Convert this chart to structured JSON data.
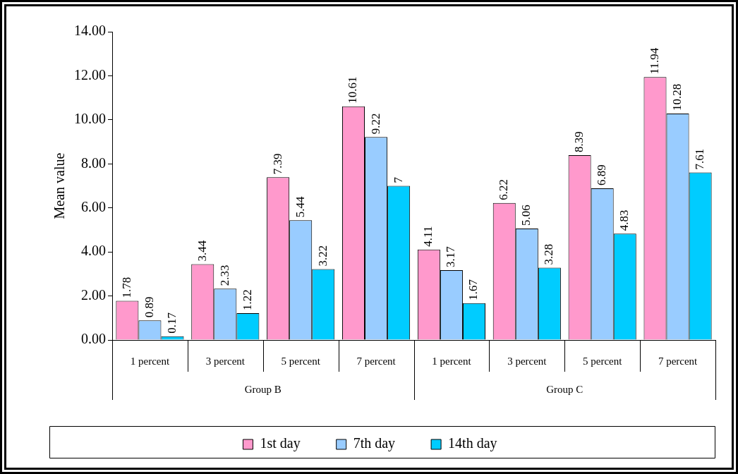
{
  "chart_data": {
    "type": "bar",
    "ylabel": "Mean value",
    "categories": [
      "1 percent",
      "3 percent",
      "5 percent",
      "7 percent",
      "1 percent",
      "3 percent",
      "5 percent",
      "7 percent"
    ],
    "annotations": [
      "Group B",
      "Group C"
    ],
    "series": [
      {
        "name": "1st day",
        "color": "#ff99cc",
        "values": [
          1.78,
          3.44,
          7.39,
          10.61,
          4.11,
          6.22,
          8.39,
          11.94
        ]
      },
      {
        "name": "7th day",
        "color": "#99ccff",
        "values": [
          0.89,
          2.33,
          5.44,
          9.22,
          3.17,
          5.06,
          6.89,
          10.28
        ]
      },
      {
        "name": "14th day",
        "color": "#00ccff",
        "values": [
          0.17,
          1.22,
          3.22,
          7,
          1.67,
          3.28,
          4.83,
          7.61
        ]
      }
    ],
    "ylim": [
      0,
      14
    ],
    "yticks": [
      {
        "value": 0,
        "label": "0.00"
      },
      {
        "value": 2,
        "label": "2.00"
      },
      {
        "value": 4,
        "label": "4.00"
      },
      {
        "value": 6,
        "label": "6.00"
      },
      {
        "value": 8,
        "label": "8.00"
      },
      {
        "value": 10,
        "label": "10.00"
      },
      {
        "value": 12,
        "label": "12.00"
      },
      {
        "value": 14,
        "label": "14.00"
      }
    ],
    "grid": false,
    "legend": "bottom",
    "data_labels": true
  }
}
